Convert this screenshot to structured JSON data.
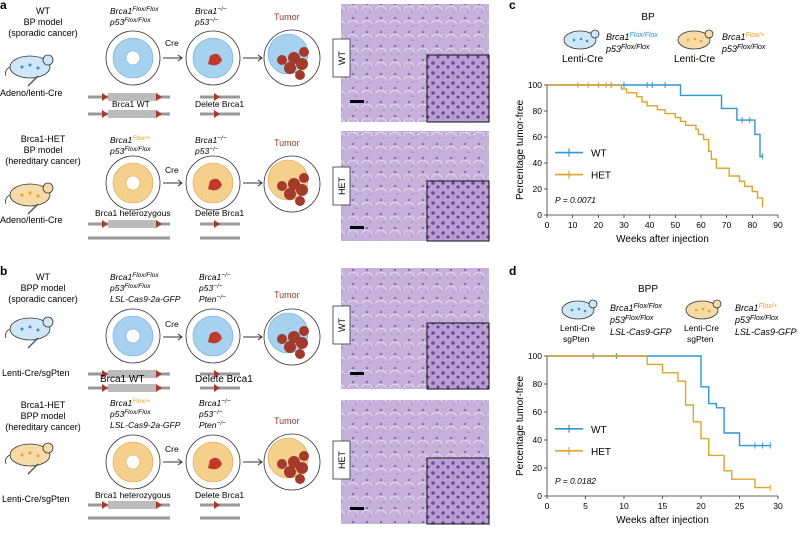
{
  "colors": {
    "wt": "#2f97d0",
    "het": "#e0a32c",
    "tumor": "#a33a2c",
    "tumor_text": "#8b3a2a",
    "cell_blue": "#a7d2ef",
    "cell_orange": "#f5cf8c",
    "histo": "#b9a2cf",
    "histo_dark": "#7d62a8"
  },
  "panels": {
    "a": {
      "letter": "a",
      "wt_model": [
        "WT",
        "BP model",
        "(sporadic cancer)"
      ],
      "wt_delivery": "Adeno/lenti-Cre",
      "wt_geno1": [
        "Brca1",
        "Flox/Flox"
      ],
      "wt_geno2": [
        "p53",
        "Flox/Flox"
      ],
      "cre": "Cre",
      "wt_after1": [
        "Brca1",
        "−/−"
      ],
      "wt_after2": [
        "p53",
        "−/−"
      ],
      "tumor": "Tumor",
      "wt_allele": "Brca1 WT",
      "delete": "Delete Brca1",
      "het_model": [
        "Brca1-HET",
        "BP model",
        "(hereditary cancer)"
      ],
      "het_delivery": "Adeno/lenti-Cre",
      "het_geno1": [
        "Brca1",
        "Flox/+"
      ],
      "het_geno2": [
        "p53",
        "Flox/Flox"
      ],
      "het_allele": "Brca1 heterozygous",
      "histo_wt": "WT",
      "histo_het": "HET"
    },
    "b": {
      "letter": "b",
      "wt_model": [
        "WT",
        "BPP model",
        "(sporadic cancer)"
      ],
      "wt_delivery": "Lenti-Cre/sgPten",
      "wt_geno1": [
        "Brca1",
        "Flox/Flox"
      ],
      "wt_geno2": [
        "p53",
        "Flox/Flox"
      ],
      "wt_geno3": "LSL-Cas9-2a-GFP",
      "cre": "Cre",
      "after1": [
        "Brca1",
        "−/−"
      ],
      "after2": [
        "p53",
        "−/−"
      ],
      "after3": [
        "Pten",
        "−/−"
      ],
      "tumor": "Tumor",
      "wt_allele": "Brca1 WT",
      "delete": "Delete Brca1",
      "het_model": [
        "Brca1-HET",
        "BPP model",
        "(hereditary cancer)"
      ],
      "het_delivery": "Lenti-Cre/sgPten",
      "het_geno1": [
        "Brca1",
        "Flox/+"
      ],
      "het_geno2": [
        "p53",
        "Flox/Flox"
      ],
      "het_geno3": "LSL-Cas9-2a-GFP",
      "het_allele": "Brca1 heterozygous",
      "histo_wt": "WT",
      "histo_het": "HET"
    },
    "c": {
      "letter": "c",
      "title": "BP",
      "mouse1_label": "Lenti-Cre",
      "mouse1_geno": [
        [
          "Brca1",
          "Flox/Flox"
        ],
        [
          "p53",
          "Flox/Flox"
        ]
      ],
      "mouse2_label": "Lenti-Cre",
      "mouse2_geno": [
        [
          "Brca1",
          "Flox/+"
        ],
        [
          "p53",
          "Flox/Flox"
        ]
      ]
    },
    "d": {
      "letter": "d",
      "title": "BPP",
      "mouse1_label": [
        "Lenti-Cre",
        "sgPten"
      ],
      "mouse1_geno": [
        [
          "Brca1",
          "Flox/Flox"
        ],
        [
          "p53",
          "Flox/Flox"
        ]
      ],
      "mouse1_geno3": "LSL-Cas9-GFP",
      "mouse2_label": [
        "Lenti-Cre",
        "sgPten"
      ],
      "mouse2_geno": [
        [
          "Brca1",
          "Flox/+"
        ],
        [
          "p53",
          "Flox/Flox"
        ]
      ],
      "mouse2_geno3": "LSL-Cas9-GFP"
    }
  },
  "chart_data": [
    {
      "type": "line",
      "title": "BP",
      "xlabel": "Weeks after injection",
      "ylabel": "Percentage tumor-free",
      "xlim": [
        0,
        90
      ],
      "ylim": [
        0,
        100
      ],
      "xticks": [
        0,
        10,
        20,
        30,
        40,
        50,
        60,
        70,
        80,
        90
      ],
      "yticks": [
        0,
        20,
        40,
        60,
        80,
        100
      ],
      "legend": [
        "WT",
        "HET"
      ],
      "annotation": "P = 0.0071",
      "series": [
        {
          "name": "WT",
          "points": [
            [
              0,
              100
            ],
            [
              52,
              100
            ],
            [
              52,
              92
            ],
            [
              68,
              92
            ],
            [
              68,
              82
            ],
            [
              74,
              82
            ],
            [
              74,
              73
            ],
            [
              81,
              73
            ],
            [
              81,
              62
            ],
            [
              83,
              62
            ],
            [
              83,
              45
            ],
            [
              84,
              45
            ]
          ],
          "censor": [
            [
              25,
              100
            ],
            [
              30,
              100
            ],
            [
              39,
              100
            ],
            [
              41,
              100
            ],
            [
              46,
              100
            ],
            [
              76,
              73
            ],
            [
              79,
              73
            ],
            [
              84,
              45
            ]
          ]
        },
        {
          "name": "HET",
          "points": [
            [
              0,
              100
            ],
            [
              29,
              100
            ],
            [
              29,
              97
            ],
            [
              31,
              97
            ],
            [
              31,
              94
            ],
            [
              35,
              94
            ],
            [
              35,
              91
            ],
            [
              37,
              91
            ],
            [
              37,
              87
            ],
            [
              39,
              87
            ],
            [
              39,
              84
            ],
            [
              43,
              84
            ],
            [
              43,
              81
            ],
            [
              46,
              81
            ],
            [
              46,
              78
            ],
            [
              50,
              78
            ],
            [
              50,
              75
            ],
            [
              52,
              75
            ],
            [
              52,
              72
            ],
            [
              54,
              72
            ],
            [
              54,
              69
            ],
            [
              58,
              69
            ],
            [
              58,
              66
            ],
            [
              59,
              66
            ],
            [
              59,
              62
            ],
            [
              61,
              62
            ],
            [
              61,
              58
            ],
            [
              63,
              58
            ],
            [
              63,
              49
            ],
            [
              64,
              49
            ],
            [
              64,
              43
            ],
            [
              66,
              43
            ],
            [
              66,
              36
            ],
            [
              71,
              36
            ],
            [
              71,
              30
            ],
            [
              75,
              30
            ],
            [
              75,
              26
            ],
            [
              77,
              26
            ],
            [
              77,
              22
            ],
            [
              80,
              22
            ],
            [
              80,
              18
            ],
            [
              82,
              18
            ],
            [
              82,
              13
            ],
            [
              84,
              13
            ],
            [
              84,
              6
            ]
          ],
          "censor": [
            [
              12,
              100
            ],
            [
              16,
              100
            ],
            [
              20,
              100
            ],
            [
              23,
              100
            ],
            [
              25,
              100
            ]
          ]
        }
      ]
    },
    {
      "type": "line",
      "title": "BPP",
      "xlabel": "Weeks after injection",
      "ylabel": "Percentage tumor-free",
      "xlim": [
        0,
        30
      ],
      "ylim": [
        0,
        100
      ],
      "xticks": [
        0,
        5,
        10,
        15,
        20,
        25,
        30
      ],
      "yticks": [
        0,
        20,
        40,
        60,
        80,
        100
      ],
      "legend": [
        "WT",
        "HET"
      ],
      "annotation": "P = 0.0182",
      "series": [
        {
          "name": "WT",
          "points": [
            [
              0,
              100
            ],
            [
              20,
              100
            ],
            [
              20,
              78
            ],
            [
              21,
              78
            ],
            [
              21,
              66
            ],
            [
              22,
              66
            ],
            [
              22,
              63
            ],
            [
              23,
              63
            ],
            [
              23,
              45
            ],
            [
              25,
              45
            ],
            [
              25,
              36
            ],
            [
              29,
              36
            ]
          ],
          "censor": [
            [
              6,
              100
            ],
            [
              9,
              100
            ],
            [
              27,
              36
            ],
            [
              28,
              36
            ],
            [
              29,
              36
            ]
          ]
        },
        {
          "name": "HET",
          "points": [
            [
              0,
              100
            ],
            [
              13,
              100
            ],
            [
              13,
              94
            ],
            [
              15,
              94
            ],
            [
              15,
              88
            ],
            [
              17,
              88
            ],
            [
              17,
              82
            ],
            [
              18,
              82
            ],
            [
              18,
              65
            ],
            [
              19,
              65
            ],
            [
              19,
              53
            ],
            [
              20,
              53
            ],
            [
              20,
              41
            ],
            [
              21,
              41
            ],
            [
              21,
              29
            ],
            [
              23,
              29
            ],
            [
              23,
              18
            ],
            [
              24,
              18
            ],
            [
              24,
              12
            ],
            [
              27,
              12
            ],
            [
              27,
              6
            ],
            [
              29,
              6
            ]
          ],
          "censor": [
            [
              29,
              6
            ]
          ]
        }
      ]
    }
  ]
}
